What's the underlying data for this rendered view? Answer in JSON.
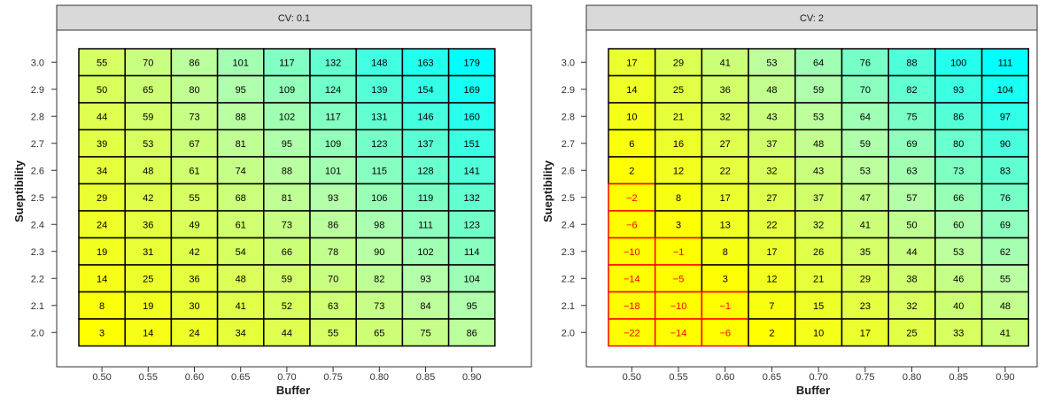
{
  "chart_data": [
    {
      "type": "heatmap",
      "facet_label": "CV: 0.1",
      "xlabel": "Buffer",
      "ylabel": "Sueptibility",
      "x": [
        "0.50",
        "0.55",
        "0.60",
        "0.65",
        "0.70",
        "0.75",
        "0.80",
        "0.85",
        "0.90"
      ],
      "y": [
        "3.0",
        "2.9",
        "2.8",
        "2.7",
        "2.6",
        "2.5",
        "2.4",
        "2.3",
        "2.2",
        "2.1",
        "2.0"
      ],
      "values": [
        [
          55,
          70,
          86,
          101,
          117,
          132,
          148,
          163,
          179
        ],
        [
          50,
          65,
          80,
          95,
          109,
          124,
          139,
          154,
          169
        ],
        [
          44,
          59,
          73,
          88,
          102,
          117,
          131,
          146,
          160
        ],
        [
          39,
          53,
          67,
          81,
          95,
          109,
          123,
          137,
          151
        ],
        [
          34,
          48,
          61,
          74,
          88,
          101,
          115,
          128,
          141
        ],
        [
          29,
          42,
          55,
          68,
          81,
          93,
          106,
          119,
          132
        ],
        [
          24,
          36,
          49,
          61,
          73,
          86,
          98,
          111,
          123
        ],
        [
          19,
          31,
          42,
          54,
          66,
          78,
          90,
          102,
          114
        ],
        [
          14,
          25,
          36,
          48,
          59,
          70,
          82,
          93,
          104
        ],
        [
          8,
          19,
          30,
          41,
          52,
          63,
          73,
          84,
          95
        ],
        [
          3,
          14,
          24,
          34,
          44,
          55,
          65,
          75,
          86
        ]
      ],
      "color_scale": {
        "low": "#ffff00",
        "mid": "#b8ffa8",
        "high": "#00ffff",
        "min": 3,
        "max": 179
      },
      "negative_cell_style": {
        "fill": "#ffff00",
        "text_color": "#ff0000",
        "border_color": "#ff0000"
      }
    },
    {
      "type": "heatmap",
      "facet_label": "CV: 2",
      "xlabel": "Buffer",
      "ylabel": "Sueptibility",
      "x": [
        "0.50",
        "0.55",
        "0.60",
        "0.65",
        "0.70",
        "0.75",
        "0.80",
        "0.85",
        "0.90"
      ],
      "y": [
        "3.0",
        "2.9",
        "2.8",
        "2.7",
        "2.6",
        "2.5",
        "2.4",
        "2.3",
        "2.2",
        "2.1",
        "2.0"
      ],
      "values": [
        [
          17,
          29,
          41,
          53,
          64,
          76,
          88,
          100,
          111
        ],
        [
          14,
          25,
          36,
          48,
          59,
          70,
          82,
          93,
          104
        ],
        [
          10,
          21,
          32,
          43,
          53,
          64,
          75,
          86,
          97
        ],
        [
          6,
          16,
          27,
          37,
          48,
          59,
          69,
          80,
          90
        ],
        [
          2,
          12,
          22,
          32,
          43,
          53,
          63,
          73,
          83
        ],
        [
          -2,
          8,
          17,
          27,
          37,
          47,
          57,
          66,
          76
        ],
        [
          -6,
          3,
          13,
          22,
          32,
          41,
          50,
          60,
          69
        ],
        [
          -10,
          -1,
          8,
          17,
          26,
          35,
          44,
          53,
          62
        ],
        [
          -14,
          -5,
          3,
          12,
          21,
          29,
          38,
          46,
          55
        ],
        [
          -18,
          -10,
          -1,
          7,
          15,
          23,
          32,
          40,
          48
        ],
        [
          -22,
          -14,
          -6,
          2,
          10,
          17,
          25,
          33,
          41
        ]
      ],
      "color_scale": {
        "low": "#ffff00",
        "mid": "#b8ffa8",
        "high": "#00ffff",
        "min": 2,
        "max": 111
      },
      "negative_cell_style": {
        "fill": "#ffff00",
        "text_color": "#ff0000",
        "border_color": "#ff0000"
      }
    }
  ]
}
